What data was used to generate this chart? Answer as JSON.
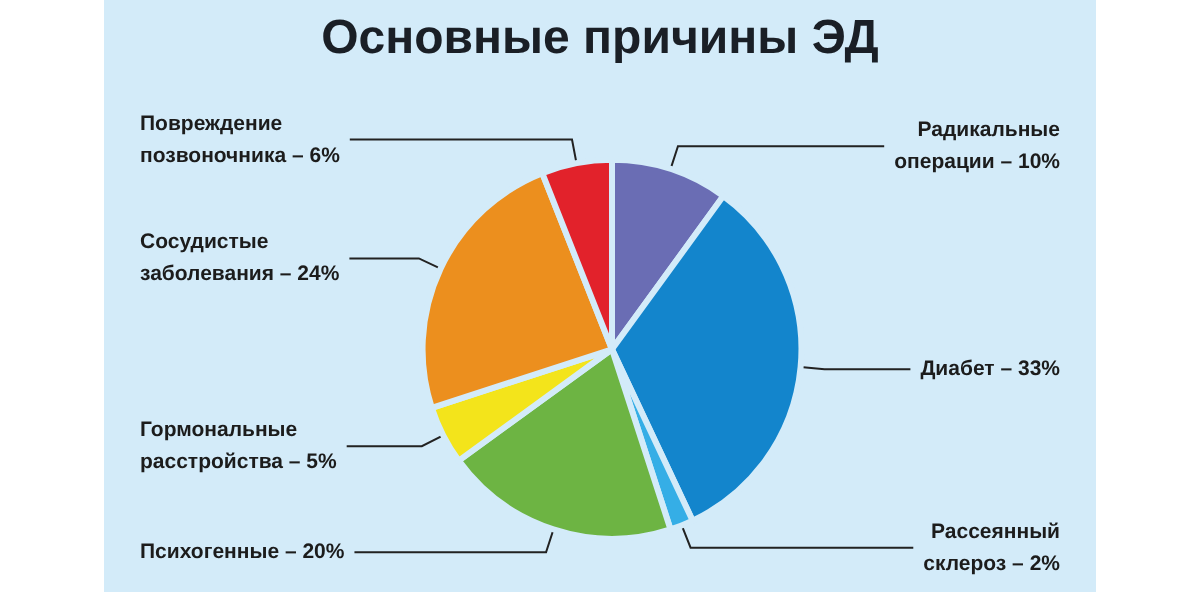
{
  "chart_data": {
    "type": "pie",
    "title": "Основные причины ЭД",
    "categories": [
      "Радикальные операции –",
      "Диабет –",
      "Рассеянный склероз –",
      "Психогенные –",
      "Гормональные расстройства –",
      "Сосудистые заболевания –",
      "Повреждение позвоночника –"
    ],
    "values": [
      10,
      33,
      2,
      20,
      5,
      24,
      6
    ],
    "colors": [
      "#6a6db4",
      "#1385cc",
      "#35aee6",
      "#6db443",
      "#f3e41b",
      "#ec8f1e",
      "#e2222b"
    ],
    "value_labels": [
      "10%",
      "33%",
      "2%",
      "20%",
      "5%",
      "24%",
      "6%"
    ],
    "legend": false
  }
}
